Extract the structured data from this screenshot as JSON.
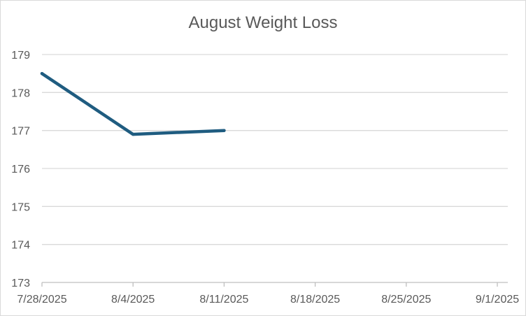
{
  "chart_data": {
    "type": "line",
    "title": "August Weight Loss",
    "xlabel": "",
    "ylabel": "",
    "x_ticks": [
      "7/28/2025",
      "8/4/2025",
      "8/11/2025",
      "8/18/2025",
      "8/25/2025",
      "9/1/2025"
    ],
    "x_tick_values": [
      "2025-07-28",
      "2025-08-04",
      "2025-08-11",
      "2025-08-18",
      "2025-08-25",
      "2025-09-01"
    ],
    "xlim": [
      "2025-07-28",
      "2025-09-01"
    ],
    "ylim": [
      173,
      179
    ],
    "y_ticks": [
      173,
      174,
      175,
      176,
      177,
      178,
      179
    ],
    "grid": true,
    "legend": "none",
    "series": [
      {
        "color": "#1f5c80",
        "points": [
          {
            "x": "2025-07-28",
            "y": 178.5
          },
          {
            "x": "2025-08-04",
            "y": 176.9
          },
          {
            "x": "2025-08-11",
            "y": 177.0
          }
        ]
      }
    ]
  }
}
